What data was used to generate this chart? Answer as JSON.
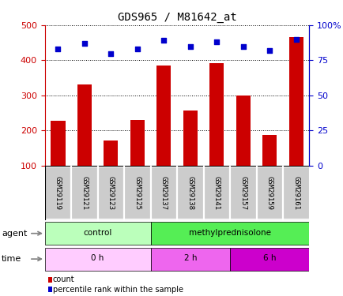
{
  "title": "GDS965 / M81642_at",
  "samples": [
    "GSM29119",
    "GSM29121",
    "GSM29123",
    "GSM29125",
    "GSM29137",
    "GSM29138",
    "GSM29141",
    "GSM29157",
    "GSM29159",
    "GSM29161"
  ],
  "counts": [
    228,
    332,
    172,
    230,
    385,
    257,
    392,
    300,
    187,
    467
  ],
  "percentiles": [
    83,
    87,
    80,
    83,
    89,
    85,
    88,
    85,
    82,
    90
  ],
  "ylim_left": [
    100,
    500
  ],
  "ylim_right": [
    0,
    100
  ],
  "yticks_left": [
    100,
    200,
    300,
    400,
    500
  ],
  "yticks_right": [
    0,
    25,
    50,
    75,
    100
  ],
  "bar_color": "#cc0000",
  "scatter_color": "#0000cc",
  "agent_groups": [
    {
      "label": "control",
      "start": 0,
      "end": 4,
      "color": "#bbffbb"
    },
    {
      "label": "methylprednisolone",
      "start": 4,
      "end": 10,
      "color": "#55ee55"
    }
  ],
  "time_groups": [
    {
      "label": "0 h",
      "start": 0,
      "end": 4,
      "color": "#ffccff"
    },
    {
      "label": "2 h",
      "start": 4,
      "end": 7,
      "color": "#ee66ee"
    },
    {
      "label": "6 h",
      "start": 7,
      "end": 10,
      "color": "#cc00cc"
    }
  ],
  "tick_label_bg": "#cccccc",
  "legend_items": [
    {
      "label": "count",
      "color": "#cc0000"
    },
    {
      "label": "percentile rank within the sample",
      "color": "#0000cc"
    }
  ]
}
